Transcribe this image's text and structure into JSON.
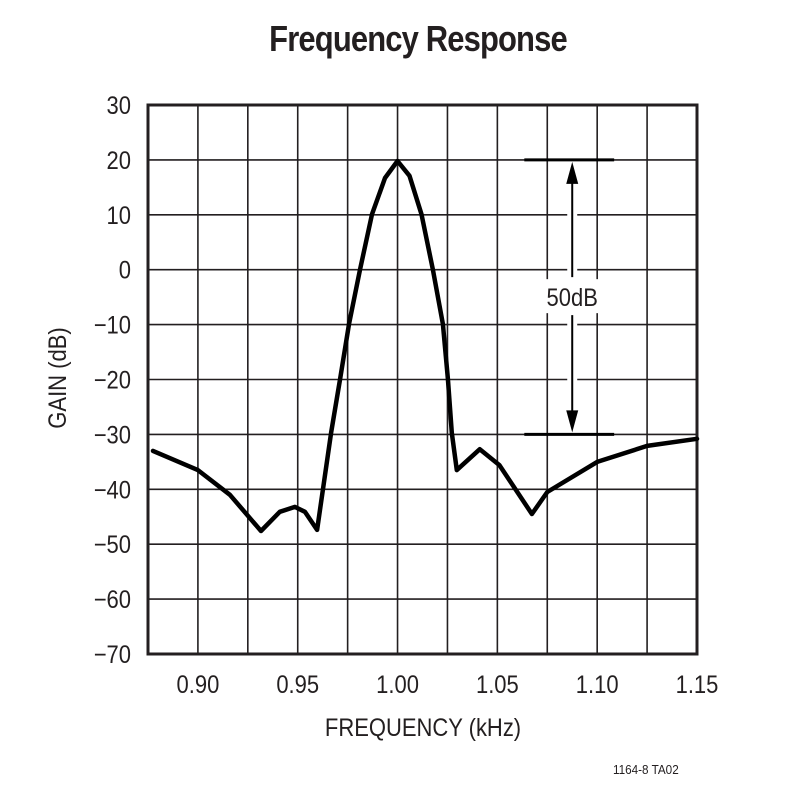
{
  "chart_data": {
    "type": "line",
    "title": "Frequency Response",
    "xlabel": "FREQUENCY (kHz)",
    "ylabel": "GAIN (dB)",
    "xlim": [
      0.875,
      1.15
    ],
    "ylim": [
      -70,
      30
    ],
    "grid": true,
    "x_ticks": [
      0.9,
      0.95,
      1.0,
      1.05,
      1.1,
      1.15
    ],
    "x_tick_labels": [
      "0.90",
      "0.95",
      "1.00",
      "1.05",
      "1.10",
      "1.15"
    ],
    "y_ticks": [
      30,
      20,
      10,
      0,
      -10,
      -20,
      -30,
      -40,
      -50,
      -60,
      -70
    ],
    "y_tick_labels": [
      "30",
      "20",
      "10",
      "0",
      "−10",
      "−20",
      "−30",
      "−40",
      "−50",
      "−60",
      "−70"
    ],
    "series": [
      {
        "name": "Gain",
        "color": "#000000",
        "x": [
          0.8775,
          0.9,
          0.916,
          0.9316,
          0.941,
          0.9486,
          0.9536,
          0.9597,
          0.9667,
          0.9712,
          0.9757,
          0.9812,
          0.9872,
          0.9937,
          1.0,
          1.006,
          1.012,
          1.0177,
          1.0227,
          1.0252,
          1.0272,
          1.0297,
          1.0412,
          1.051,
          1.0673,
          1.075,
          1.1,
          1.125,
          1.15
        ],
        "y": [
          -33.0,
          -36.5,
          -41.0,
          -47.6,
          -44.1,
          -43.2,
          -44.1,
          -47.4,
          -29.7,
          -19.9,
          -9.9,
          0.0,
          10.1,
          16.7,
          19.8,
          17.1,
          10.1,
          0.0,
          -9.9,
          -19.9,
          -29.7,
          -36.5,
          -32.7,
          -35.6,
          -44.5,
          -40.5,
          -35.0,
          -32.1,
          -30.8
        ]
      }
    ],
    "annotations": [
      {
        "text": "50dB",
        "type": "double-arrow",
        "x": 1.0875,
        "y_from": 20,
        "y_to": -30,
        "ref_lines": [
          {
            "y": 20,
            "x_from": 1.0635,
            "x_to": 1.1085
          },
          {
            "y": -30,
            "x_from": 1.0635,
            "x_to": 1.1085
          }
        ]
      }
    ]
  },
  "figure_code": "1164-8 TA02"
}
